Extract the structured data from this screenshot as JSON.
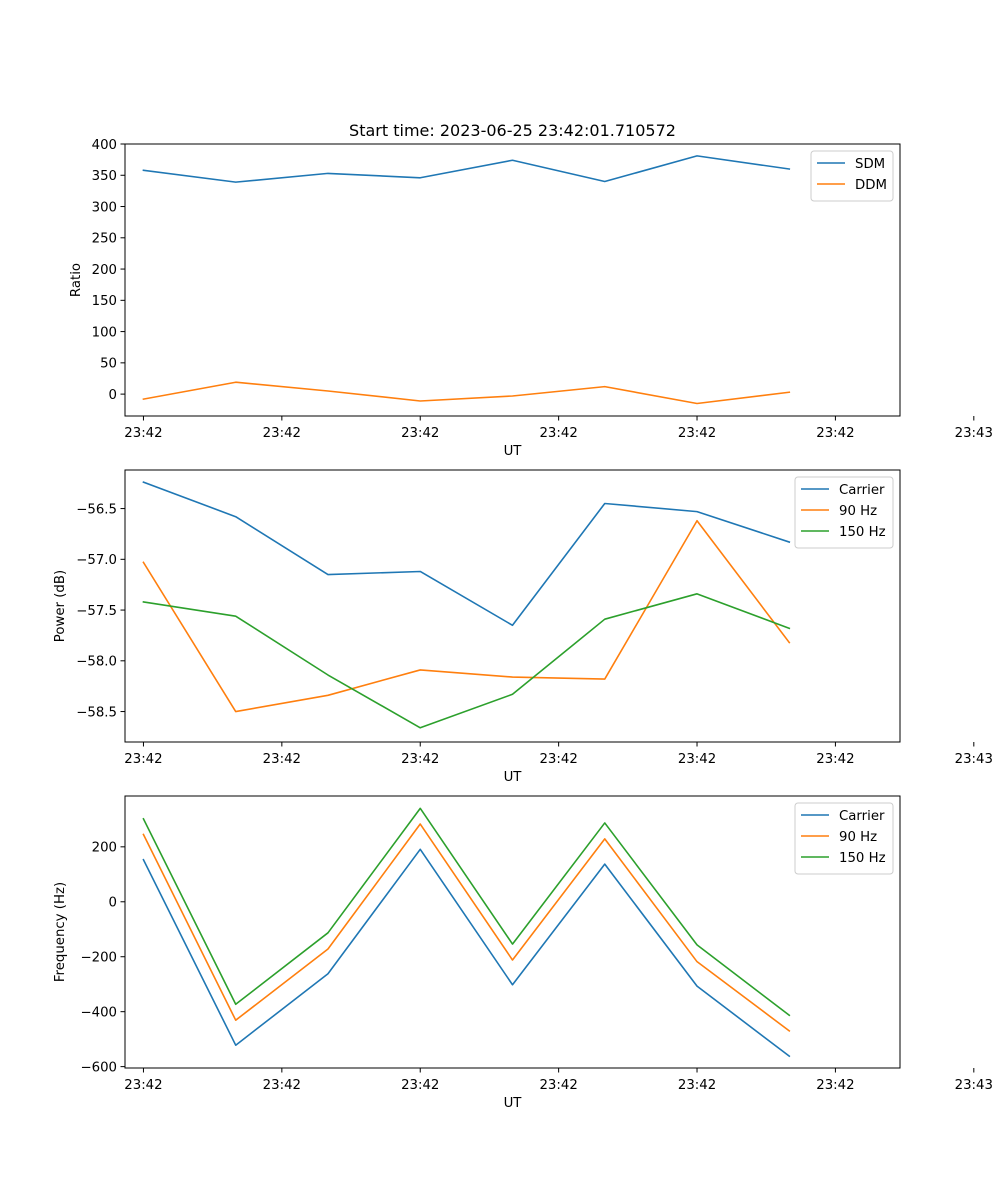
{
  "figure": {
    "title": "Start time: 2023-06-25 23:42:01.710572"
  },
  "chart_data": [
    {
      "type": "line",
      "title": "Start time: 2023-06-25 23:42:01.710572",
      "xlabel": "UT",
      "ylabel": "Ratio",
      "x": [
        1,
        2,
        3,
        4,
        5,
        6,
        7,
        8
      ],
      "xlim": [
        0.8,
        9.2
      ],
      "xticks": [
        1,
        2.5,
        4,
        5.5,
        7,
        8.5,
        10
      ],
      "xtick_labels": [
        "23:42",
        "23:42",
        "23:42",
        "23:42",
        "23:42",
        "23:42",
        "23:43"
      ],
      "ylim": [
        -35,
        400
      ],
      "yticks": [
        0,
        50,
        100,
        150,
        200,
        250,
        300,
        350,
        400
      ],
      "ytick_labels": [
        "0",
        "50",
        "100",
        "150",
        "200",
        "250",
        "300",
        "350",
        "400"
      ],
      "legend": "top-right",
      "grid": false,
      "series": [
        {
          "name": "SDM",
          "color": "#1f77b4",
          "values": [
            358,
            339,
            353,
            346,
            374,
            340,
            381,
            360
          ]
        },
        {
          "name": "DDM",
          "color": "#ff7f0e",
          "values": [
            -8,
            19,
            5,
            -11,
            -3,
            12,
            -15,
            3
          ]
        }
      ]
    },
    {
      "type": "line",
      "title": "",
      "xlabel": "UT",
      "ylabel": "Power (dB)",
      "x": [
        1,
        2,
        3,
        4,
        5,
        6,
        7,
        8
      ],
      "xlim": [
        0.8,
        9.2
      ],
      "xticks": [
        1,
        2.5,
        4,
        5.5,
        7,
        8.5,
        10
      ],
      "xtick_labels": [
        "23:42",
        "23:42",
        "23:42",
        "23:42",
        "23:42",
        "23:42",
        "23:43"
      ],
      "ylim": [
        -58.8,
        -56.12
      ],
      "yticks": [
        -58.5,
        -58.0,
        -57.5,
        -57.0,
        -56.5
      ],
      "ytick_labels": [
        "−58.5",
        "−58.0",
        "−57.5",
        "−57.0",
        "−56.5"
      ],
      "legend": "top-right",
      "grid": false,
      "series": [
        {
          "name": "Carrier",
          "color": "#1f77b4",
          "values": [
            -56.24,
            -56.58,
            -57.15,
            -57.12,
            -57.65,
            -56.45,
            -56.53,
            -56.83
          ]
        },
        {
          "name": "90 Hz",
          "color": "#ff7f0e",
          "values": [
            -57.03,
            -58.5,
            -58.34,
            -58.09,
            -58.16,
            -58.18,
            -56.62,
            -57.82
          ]
        },
        {
          "name": "150 Hz",
          "color": "#2ca02c",
          "values": [
            -57.42,
            -57.56,
            -58.14,
            -58.66,
            -58.33,
            -57.59,
            -57.34,
            -57.68
          ]
        }
      ]
    },
    {
      "type": "line",
      "title": "",
      "xlabel": "UT",
      "ylabel": "Frequency (Hz)",
      "x": [
        1,
        2,
        3,
        4,
        5,
        6,
        7,
        8
      ],
      "xlim": [
        0.8,
        9.2
      ],
      "xticks": [
        1,
        2.5,
        4,
        5.5,
        7,
        8.5,
        10
      ],
      "xtick_labels": [
        "23:42",
        "23:42",
        "23:42",
        "23:42",
        "23:42",
        "23:42",
        "23:43"
      ],
      "ylim": [
        -605,
        385
      ],
      "yticks": [
        -600,
        -400,
        -200,
        0,
        200
      ],
      "ytick_labels": [
        "−600",
        "−400",
        "−200",
        "0",
        "200"
      ],
      "legend": "top-right",
      "grid": false,
      "series": [
        {
          "name": "Carrier",
          "color": "#1f77b4",
          "values": [
            153,
            -522,
            -262,
            191,
            -302,
            137,
            -307,
            -562
          ]
        },
        {
          "name": "90 Hz",
          "color": "#ff7f0e",
          "values": [
            245,
            -431,
            -172,
            283,
            -212,
            229,
            -218,
            -470
          ]
        },
        {
          "name": "150 Hz",
          "color": "#2ca02c",
          "values": [
            302,
            -373,
            -113,
            340,
            -154,
            287,
            -157,
            -413
          ]
        }
      ]
    }
  ]
}
